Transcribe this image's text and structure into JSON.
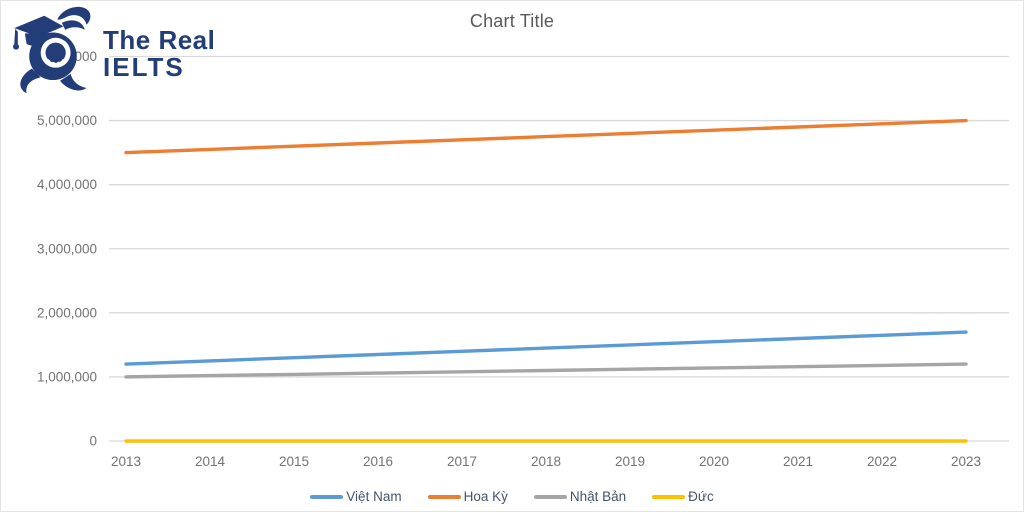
{
  "logo": {
    "name": "The Real IELTS",
    "line1": "The Real",
    "line2": "IELTS",
    "color": "#223D78"
  },
  "chart_data": {
    "type": "line",
    "title": "Chart Title",
    "xlabel": "",
    "ylabel": "",
    "x": [
      2013,
      2014,
      2015,
      2016,
      2017,
      2018,
      2019,
      2020,
      2021,
      2022,
      2023
    ],
    "series": [
      {
        "name": "Việt Nam",
        "color": "#5B9BD5",
        "values": [
          1200000,
          1250000,
          1300000,
          1350000,
          1400000,
          1450000,
          1500000,
          1550000,
          1600000,
          1650000,
          1700000
        ]
      },
      {
        "name": "Hoa Kỳ",
        "color": "#ED7D31",
        "values": [
          4500000,
          4550000,
          4600000,
          4650000,
          4700000,
          4750000,
          4800000,
          4850000,
          4900000,
          4950000,
          5000000
        ]
      },
      {
        "name": "Nhật Bản",
        "color": "#A5A5A5",
        "values": [
          1000000,
          1020000,
          1040000,
          1060000,
          1080000,
          1100000,
          1120000,
          1140000,
          1160000,
          1180000,
          1200000
        ]
      },
      {
        "name": "Đức",
        "color": "#FFC000",
        "values": [
          0,
          0,
          0,
          0,
          0,
          0,
          0,
          0,
          0,
          0,
          0
        ]
      }
    ],
    "ylim": [
      0,
      6000000
    ],
    "ytick_step": 1000000,
    "ytick_labels": [
      "0",
      "1,000,000",
      "2,000,000",
      "3,000,000",
      "4,000,000",
      "5,000,000",
      "6,000,000"
    ],
    "grid": true,
    "gridline_color": "#D9D9D9",
    "axis_text_color": "#737373",
    "title_color": "#595959",
    "legend_position": "bottom",
    "legend_text_color": "#44546A"
  }
}
